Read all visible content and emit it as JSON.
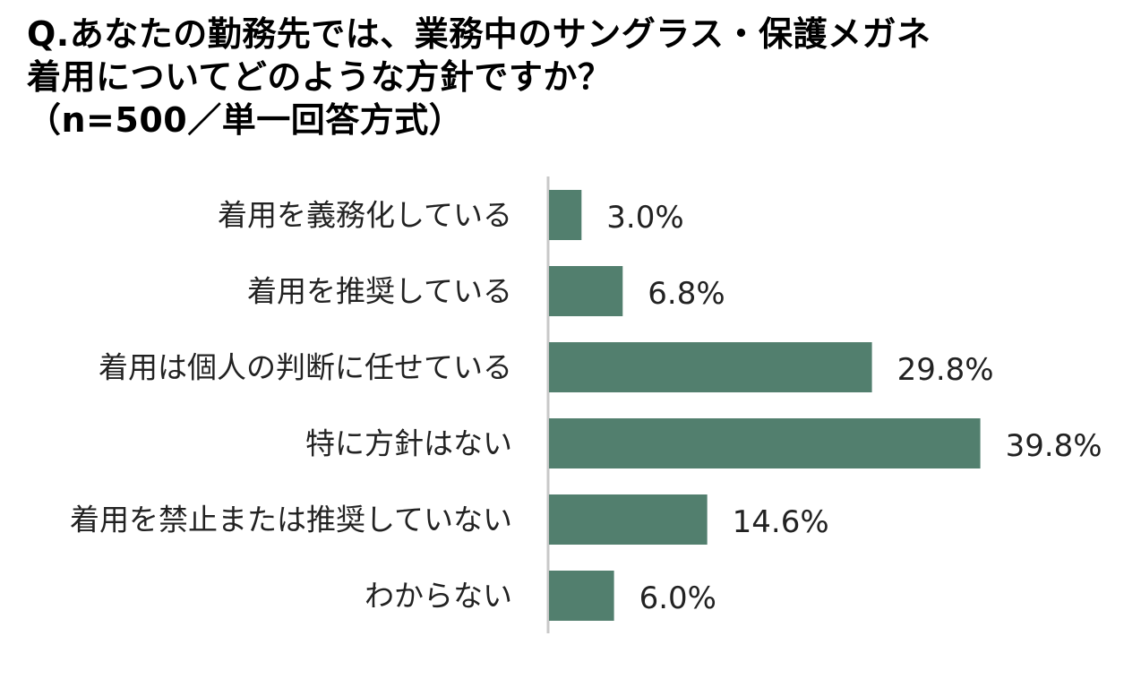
{
  "title_lines": [
    "Q.あなたの勤務先では、業務中のサングラス・保護メガネ",
    "着用についてどのような方針ですか？",
    "（n=500／単一回答方式）"
  ],
  "colors": {
    "bar": "#527f6e",
    "axis": "#c8c8c8",
    "text": "#222222"
  },
  "chart_data": {
    "type": "bar",
    "orientation": "horizontal",
    "categories": [
      "着用を義務化している",
      "着用を推奨している",
      "着用は個人の判断に任せている",
      "特に方針はない",
      "着用を禁止または推奨していない",
      "わからない"
    ],
    "values": [
      3.0,
      6.8,
      29.8,
      39.8,
      14.6,
      6.0
    ],
    "value_labels": [
      "3.0%",
      "6.8%",
      "29.8%",
      "39.8%",
      "14.6%",
      "6.0%"
    ],
    "unit": "%",
    "xlim": [
      0,
      40
    ],
    "grid": false,
    "legend": "none"
  }
}
